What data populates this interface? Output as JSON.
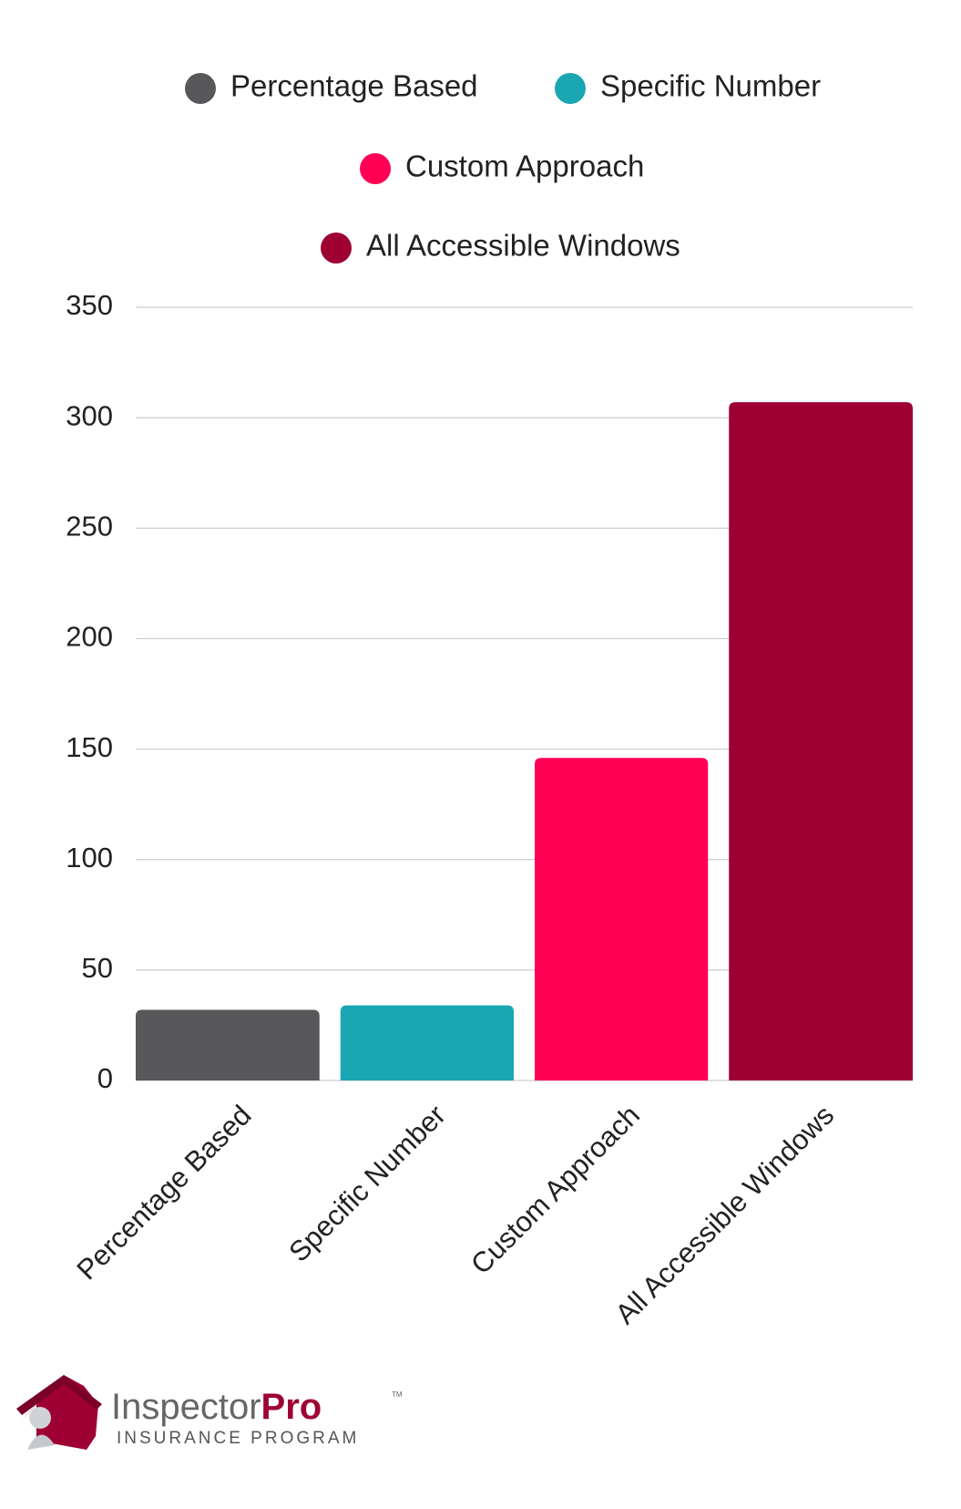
{
  "chart_data": {
    "type": "bar",
    "categories": [
      "Percentage Based",
      "Specific Number",
      "Custom Approach",
      "All Accessible Windows"
    ],
    "values": [
      32,
      34,
      146,
      307
    ],
    "colors": [
      "#58585a",
      "#1aa6b3",
      "#ff0055",
      "#9e0034"
    ],
    "ylim": [
      0,
      350
    ],
    "yticks": [
      0,
      50,
      100,
      150,
      200,
      250,
      300,
      350
    ],
    "grid": true,
    "legend": "top"
  },
  "logo": {
    "name": "Inspector",
    "name_bold": "Pro",
    "trademark": "TM",
    "tagline": "INSURANCE PROGRAM"
  }
}
